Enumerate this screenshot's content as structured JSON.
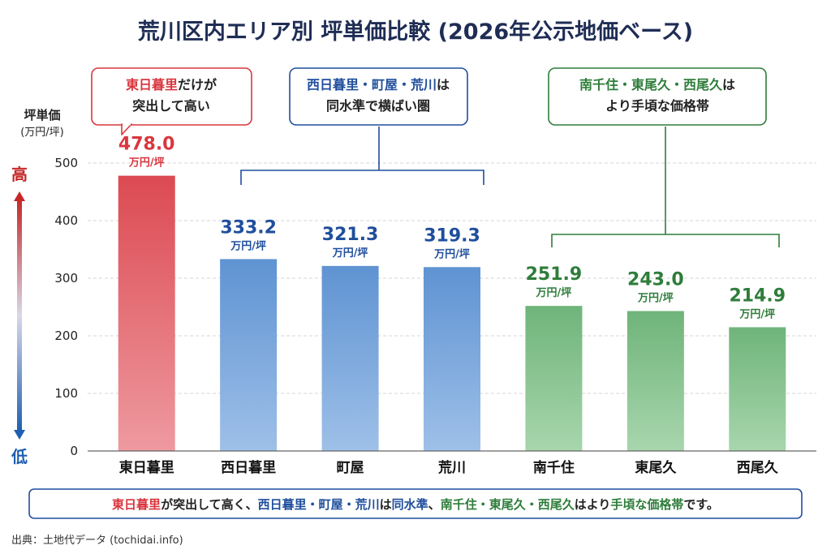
{
  "title": "荒川区内エリア別 坪単価比較 (2026年公示地価ベース)",
  "y_axis": {
    "label_line1": "坪単価",
    "label_line2": "(万円/坪)",
    "high_label": "高",
    "low_label": "低"
  },
  "value_unit": "万円/坪",
  "colors": {
    "red": "#d9363e",
    "blue": "#1f4e9c",
    "green": "#2e7d3a",
    "bar_red": "#e06068",
    "bar_blue": "#6e9fd6",
    "bar_green": "#7fbf86",
    "title": "#1f2d55"
  },
  "callouts": [
    {
      "line1_highlight": "東日暮里",
      "line1_rest": "だけが",
      "line2": "突出して高い",
      "color": "#d9363e"
    },
    {
      "line1_highlight": "西日暮里・町屋・荒川",
      "line1_rest": "は",
      "line2": "同水準で横ばい圏",
      "color": "#1f4e9c"
    },
    {
      "line1_highlight": "南千住・東尾久・西尾久",
      "line1_rest": "は",
      "line2": "より手頃な価格帯",
      "color": "#2e7d3a"
    }
  ],
  "summary": {
    "part1": "東日暮里",
    "part2": "が突出して高く、",
    "part3": "西日暮里・町屋・荒川",
    "part4": "は",
    "part5": "同水準",
    "part6": "、",
    "part7": "南千住・東尾久・西尾久",
    "part8": "はより",
    "part9": "手頃な価格帯",
    "part10": "です。"
  },
  "source": "出典：土地代データ (tochidai.info)",
  "chart_data": {
    "type": "bar",
    "categories": [
      "東日暮里",
      "西日暮里",
      "町屋",
      "荒川",
      "南千住",
      "東尾久",
      "西尾久"
    ],
    "values": [
      478.0,
      333.2,
      321.3,
      319.3,
      251.9,
      243.0,
      214.9
    ],
    "value_labels": [
      "478.0",
      "333.2",
      "321.3",
      "319.3",
      "251.9",
      "243.0",
      "214.9"
    ],
    "groups": [
      "red",
      "blue",
      "blue",
      "blue",
      "green",
      "green",
      "green"
    ],
    "ylim": [
      0,
      500
    ],
    "yticks": [
      0,
      100,
      200,
      300,
      400,
      500
    ],
    "grid": true
  }
}
